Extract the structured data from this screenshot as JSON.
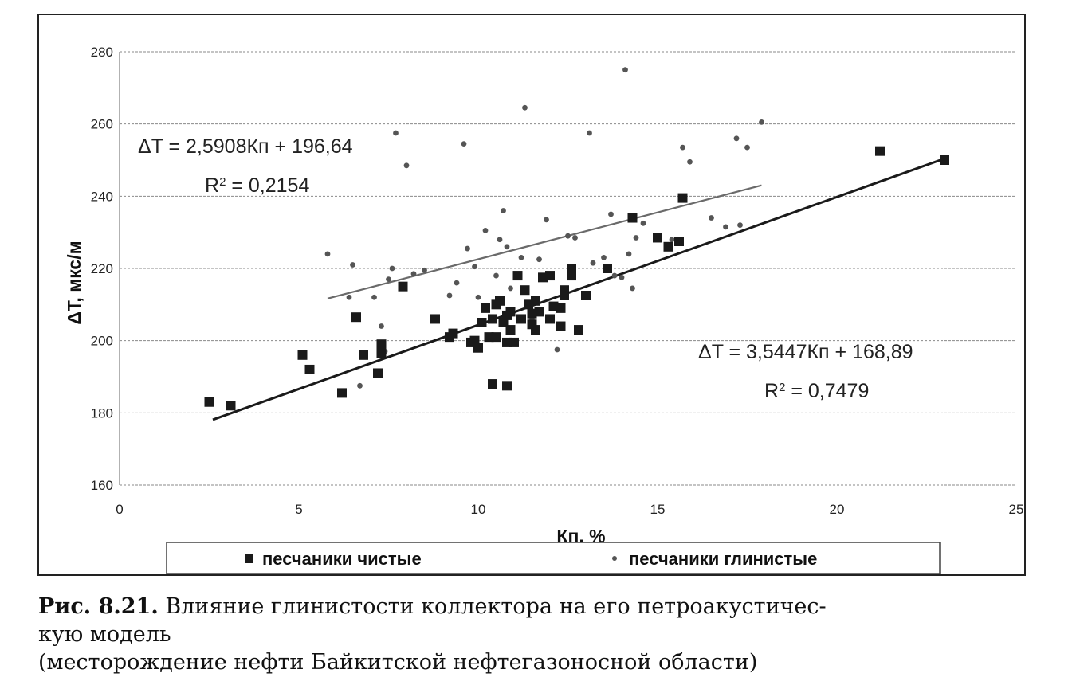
{
  "chart_data": {
    "type": "scatter",
    "xlabel": "Кп, %",
    "ylabel": "ΔT, мкс/м",
    "xlim": [
      0,
      25
    ],
    "ylim": [
      160,
      280
    ],
    "x_ticks": [
      "0",
      "5",
      "10",
      "15",
      "20",
      "25"
    ],
    "y_ticks": [
      "160",
      "180",
      "200",
      "220",
      "240",
      "260",
      "280"
    ],
    "grid": "horizontal dashed",
    "legend_position": "bottom",
    "series": [
      {
        "name": "песчаники чистые",
        "marker": "square",
        "color": "#1a1a1a",
        "points": [
          [
            2.5,
            183
          ],
          [
            3.1,
            182
          ],
          [
            5.1,
            196
          ],
          [
            5.3,
            192
          ],
          [
            6.2,
            185.5
          ],
          [
            6.6,
            206.5
          ],
          [
            6.8,
            196
          ],
          [
            7.2,
            191
          ],
          [
            7.3,
            199
          ],
          [
            7.3,
            196.5
          ],
          [
            7.9,
            215
          ],
          [
            8.8,
            206
          ],
          [
            9.2,
            201
          ],
          [
            9.3,
            202
          ],
          [
            9.8,
            199.5
          ],
          [
            9.9,
            200
          ],
          [
            10.0,
            198
          ],
          [
            10.1,
            205
          ],
          [
            10.2,
            209
          ],
          [
            10.3,
            201
          ],
          [
            10.4,
            206
          ],
          [
            10.4,
            188
          ],
          [
            10.5,
            201
          ],
          [
            10.5,
            210
          ],
          [
            10.6,
            211
          ],
          [
            10.7,
            205
          ],
          [
            10.8,
            207
          ],
          [
            10.8,
            199.5
          ],
          [
            10.8,
            187.5
          ],
          [
            10.9,
            203
          ],
          [
            10.9,
            208
          ],
          [
            11.0,
            199.5
          ],
          [
            11.1,
            218
          ],
          [
            11.2,
            206
          ],
          [
            11.3,
            214
          ],
          [
            11.4,
            210
          ],
          [
            11.5,
            204.5
          ],
          [
            11.5,
            207.5
          ],
          [
            11.6,
            211
          ],
          [
            11.6,
            203
          ],
          [
            11.7,
            208
          ],
          [
            11.8,
            217.5
          ],
          [
            12.0,
            206
          ],
          [
            12.0,
            218
          ],
          [
            12.1,
            209.5
          ],
          [
            12.3,
            204
          ],
          [
            12.3,
            209
          ],
          [
            12.4,
            214
          ],
          [
            12.4,
            212.5
          ],
          [
            12.6,
            218
          ],
          [
            12.6,
            220
          ],
          [
            12.8,
            203
          ],
          [
            13.0,
            212.5
          ],
          [
            13.6,
            220
          ],
          [
            14.3,
            234
          ],
          [
            15.0,
            228.5
          ],
          [
            15.3,
            226
          ],
          [
            15.6,
            227.5
          ],
          [
            15.7,
            239.5
          ],
          [
            21.2,
            252.5
          ],
          [
            23.0,
            250
          ]
        ],
        "trendline": {
          "slope": 3.5447,
          "intercept": 168.89,
          "x_range": [
            2.6,
            23.0
          ],
          "equation": "ΔT = 3,5447Кп + 168,89",
          "r2_label": "R",
          "r2_value": " = 0,7479"
        }
      },
      {
        "name": "песчаники глинистые",
        "marker": "circle",
        "color": "#555555",
        "points": [
          [
            5.8,
            224
          ],
          [
            6.4,
            212
          ],
          [
            6.5,
            221
          ],
          [
            6.7,
            187.5
          ],
          [
            7.1,
            212
          ],
          [
            7.3,
            204
          ],
          [
            7.4,
            197
          ],
          [
            7.5,
            217
          ],
          [
            7.6,
            220
          ],
          [
            7.7,
            257.5
          ],
          [
            8.0,
            248.5
          ],
          [
            8.2,
            218.5
          ],
          [
            8.5,
            219.5
          ],
          [
            9.2,
            212.5
          ],
          [
            9.4,
            216
          ],
          [
            9.6,
            254.5
          ],
          [
            9.7,
            225.5
          ],
          [
            9.9,
            220.5
          ],
          [
            10.0,
            212
          ],
          [
            10.2,
            230.5
          ],
          [
            10.5,
            218
          ],
          [
            10.6,
            228
          ],
          [
            10.7,
            236
          ],
          [
            10.8,
            226
          ],
          [
            10.9,
            214.5
          ],
          [
            11.1,
            218
          ],
          [
            11.2,
            223
          ],
          [
            11.3,
            264.5
          ],
          [
            11.5,
            206
          ],
          [
            11.7,
            222.5
          ],
          [
            11.9,
            233.5
          ],
          [
            12.2,
            197.5
          ],
          [
            12.5,
            229
          ],
          [
            12.7,
            228.5
          ],
          [
            13.1,
            257.5
          ],
          [
            13.2,
            221.5
          ],
          [
            13.5,
            223
          ],
          [
            13.7,
            235
          ],
          [
            13.8,
            218
          ],
          [
            14.0,
            217.5
          ],
          [
            14.1,
            275
          ],
          [
            14.2,
            224
          ],
          [
            14.3,
            214.5
          ],
          [
            14.4,
            228.5
          ],
          [
            14.6,
            232.5
          ],
          [
            15.4,
            228
          ],
          [
            15.7,
            253.5
          ],
          [
            15.9,
            249.5
          ],
          [
            16.5,
            234
          ],
          [
            16.9,
            231.5
          ],
          [
            17.2,
            256
          ],
          [
            17.3,
            232
          ],
          [
            17.5,
            253.5
          ],
          [
            17.9,
            260.5
          ]
        ],
        "trendline": {
          "slope": 2.5908,
          "intercept": 196.64,
          "x_range": [
            5.8,
            17.9
          ],
          "equation": "ΔT = 2,5908Кп + 196,64",
          "r2_label": "R",
          "r2_value": " = 0,2154"
        }
      }
    ]
  },
  "caption": {
    "figure_number": "Рис. 8.21.",
    "line1": " Влияние глинистости коллектора на его петроакустичес-",
    "line2": "кую модель",
    "line3": "(месторождение нефти Байкитской нефтегазоносной области)"
  }
}
